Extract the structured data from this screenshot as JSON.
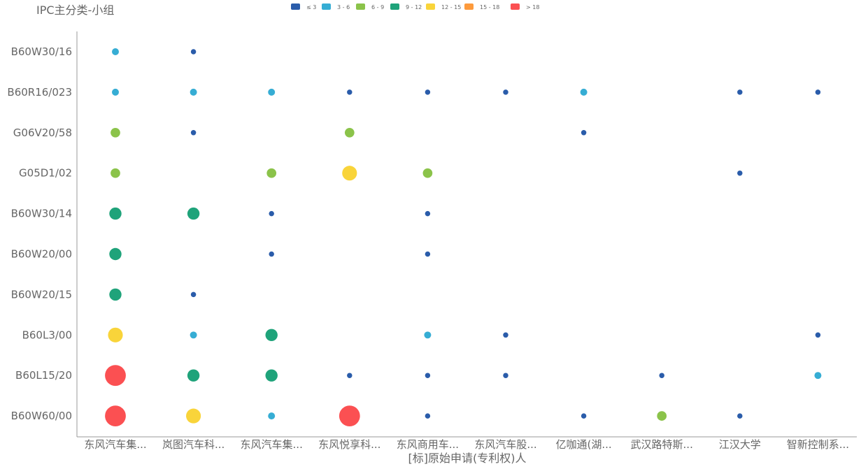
{
  "chart_data": {
    "type": "scatter",
    "subtype": "bubble-matrix",
    "ylabel": "IPC主分类-小组",
    "xlabel": "[标]原始申请(专利权)人",
    "categories_x": [
      "东风汽车集...",
      "岚图汽车科...",
      "东风汽车集...",
      "东风悦享科...",
      "东风商用车...",
      "东风汽车股...",
      "亿咖通(湖...",
      "武汉路特斯...",
      "江汉大学",
      "智新控制系..."
    ],
    "categories_y": [
      "B60W30/16",
      "B60R16/023",
      "G06V20/58",
      "G05D1/02",
      "B60W30/14",
      "B60W20/00",
      "B60W20/15",
      "B60L3/00",
      "B60L15/20",
      "B60W60/00"
    ],
    "legend": [
      {
        "label": "≤ 3",
        "color": "#2a5caa"
      },
      {
        "label": "3 - 6",
        "color": "#36add4"
      },
      {
        "label": "6 - 9",
        "color": "#8bc34a"
      },
      {
        "label": "9 - 12",
        "color": "#1fa37a"
      },
      {
        "label": "12 - 15",
        "color": "#f9d43a"
      },
      {
        "label": "15 - 18",
        "color": "#fd9a3c"
      },
      {
        "label": "> 18",
        "color": "#fb5052"
      }
    ],
    "legend_position": "top",
    "grid": false,
    "note_values": "values estimated from bubble size/color bin",
    "points": [
      {
        "y": "B60W30/16",
        "x": 0,
        "v": 4
      },
      {
        "y": "B60W30/16",
        "x": 1,
        "v": 2
      },
      {
        "y": "B60R16/023",
        "x": 0,
        "v": 4
      },
      {
        "y": "B60R16/023",
        "x": 1,
        "v": 4
      },
      {
        "y": "B60R16/023",
        "x": 2,
        "v": 4
      },
      {
        "y": "B60R16/023",
        "x": 3,
        "v": 2
      },
      {
        "y": "B60R16/023",
        "x": 4,
        "v": 2
      },
      {
        "y": "B60R16/023",
        "x": 5,
        "v": 2
      },
      {
        "y": "B60R16/023",
        "x": 6,
        "v": 4
      },
      {
        "y": "B60R16/023",
        "x": 8,
        "v": 2
      },
      {
        "y": "B60R16/023",
        "x": 9,
        "v": 2
      },
      {
        "y": "G06V20/58",
        "x": 0,
        "v": 7
      },
      {
        "y": "G06V20/58",
        "x": 1,
        "v": 2
      },
      {
        "y": "G06V20/58",
        "x": 3,
        "v": 7
      },
      {
        "y": "G06V20/58",
        "x": 6,
        "v": 2
      },
      {
        "y": "G05D1/02",
        "x": 0,
        "v": 7
      },
      {
        "y": "G05D1/02",
        "x": 2,
        "v": 7
      },
      {
        "y": "G05D1/02",
        "x": 3,
        "v": 13
      },
      {
        "y": "G05D1/02",
        "x": 4,
        "v": 7
      },
      {
        "y": "G05D1/02",
        "x": 8,
        "v": 2
      },
      {
        "y": "B60W30/14",
        "x": 0,
        "v": 10
      },
      {
        "y": "B60W30/14",
        "x": 1,
        "v": 10
      },
      {
        "y": "B60W30/14",
        "x": 2,
        "v": 2
      },
      {
        "y": "B60W30/14",
        "x": 4,
        "v": 2
      },
      {
        "y": "B60W20/00",
        "x": 0,
        "v": 10
      },
      {
        "y": "B60W20/00",
        "x": 2,
        "v": 2
      },
      {
        "y": "B60W20/00",
        "x": 4,
        "v": 2
      },
      {
        "y": "B60W20/15",
        "x": 0,
        "v": 10
      },
      {
        "y": "B60W20/15",
        "x": 1,
        "v": 2
      },
      {
        "y": "B60L3/00",
        "x": 0,
        "v": 13
      },
      {
        "y": "B60L3/00",
        "x": 1,
        "v": 4
      },
      {
        "y": "B60L3/00",
        "x": 2,
        "v": 10
      },
      {
        "y": "B60L3/00",
        "x": 4,
        "v": 4
      },
      {
        "y": "B60L3/00",
        "x": 5,
        "v": 2
      },
      {
        "y": "B60L3/00",
        "x": 9,
        "v": 2
      },
      {
        "y": "B60L15/20",
        "x": 0,
        "v": 20
      },
      {
        "y": "B60L15/20",
        "x": 1,
        "v": 10
      },
      {
        "y": "B60L15/20",
        "x": 2,
        "v": 10
      },
      {
        "y": "B60L15/20",
        "x": 3,
        "v": 2
      },
      {
        "y": "B60L15/20",
        "x": 4,
        "v": 2
      },
      {
        "y": "B60L15/20",
        "x": 5,
        "v": 2
      },
      {
        "y": "B60L15/20",
        "x": 7,
        "v": 2
      },
      {
        "y": "B60L15/20",
        "x": 9,
        "v": 4
      },
      {
        "y": "B60W60/00",
        "x": 0,
        "v": 20
      },
      {
        "y": "B60W60/00",
        "x": 1,
        "v": 13
      },
      {
        "y": "B60W60/00",
        "x": 2,
        "v": 4
      },
      {
        "y": "B60W60/00",
        "x": 3,
        "v": 20
      },
      {
        "y": "B60W60/00",
        "x": 4,
        "v": 2
      },
      {
        "y": "B60W60/00",
        "x": 6,
        "v": 2
      },
      {
        "y": "B60W60/00",
        "x": 7,
        "v": 7
      },
      {
        "y": "B60W60/00",
        "x": 8,
        "v": 2
      }
    ]
  }
}
